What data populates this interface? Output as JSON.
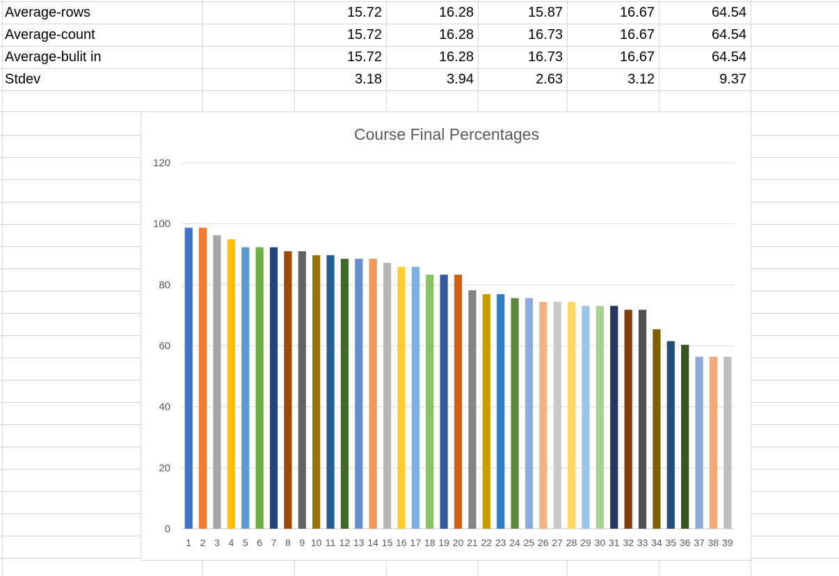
{
  "sheet": {
    "rows": [
      {
        "label": "Average-rows",
        "values": [
          "15.72",
          "16.28",
          "15.87",
          "16.67",
          "64.54"
        ]
      },
      {
        "label": "Average-count",
        "values": [
          "15.72",
          "16.28",
          "16.73",
          "16.67",
          "64.54"
        ]
      },
      {
        "label": "Average-bulit in",
        "values": [
          "15.72",
          "16.28",
          "16.73",
          "16.67",
          "64.54"
        ]
      },
      {
        "label": "Stdev",
        "values": [
          "3.18",
          "3.94",
          "2.63",
          "3.12",
          "9.37"
        ]
      }
    ]
  },
  "chart_data": {
    "type": "bar",
    "title": "Course Final Percentages",
    "xlabel": "",
    "ylabel": "",
    "ylim": [
      0,
      120
    ],
    "yticks": [
      "0",
      "20",
      "40",
      "60",
      "80",
      "100",
      "120"
    ],
    "grid": true,
    "legend": "none",
    "categories": [
      "1",
      "2",
      "3",
      "4",
      "5",
      "6",
      "7",
      "8",
      "9",
      "10",
      "11",
      "12",
      "13",
      "14",
      "15",
      "16",
      "17",
      "18",
      "19",
      "20",
      "21",
      "22",
      "23",
      "24",
      "25",
      "26",
      "27",
      "28",
      "29",
      "30",
      "31",
      "32",
      "33",
      "34",
      "35",
      "36",
      "37",
      "38",
      "39"
    ],
    "values": [
      98.7,
      98.7,
      96.2,
      94.9,
      92.3,
      92.3,
      92.3,
      91.0,
      91.0,
      89.7,
      89.7,
      88.5,
      88.5,
      88.5,
      87.2,
      85.9,
      85.9,
      83.3,
      83.3,
      83.3,
      78.2,
      76.9,
      76.9,
      75.6,
      75.6,
      74.4,
      74.4,
      74.4,
      73.1,
      73.1,
      73.1,
      71.8,
      71.8,
      65.4,
      61.5,
      60.3,
      56.4,
      56.4,
      56.4
    ],
    "colors": [
      "#4472c4",
      "#ed7d31",
      "#a5a5a5",
      "#ffc000",
      "#5b9bd5",
      "#70ad47",
      "#264478",
      "#9e480e",
      "#636363",
      "#997300",
      "#255e91",
      "#43682b",
      "#698ed0",
      "#f1975a",
      "#b7b7b7",
      "#ffcd33",
      "#7cafdd",
      "#8cc168",
      "#335aa1",
      "#d26012",
      "#848484",
      "#cc9a00",
      "#327dc2",
      "#5a8a39",
      "#8faadc",
      "#f4b183",
      "#c9c9c9",
      "#ffd966",
      "#9dc3e6",
      "#a9d18e",
      "#203864",
      "#843c0c",
      "#525252",
      "#7f6000",
      "#1f4e79",
      "#375623",
      "#8eaadb",
      "#f4a97a",
      "#bfbfbf"
    ]
  }
}
